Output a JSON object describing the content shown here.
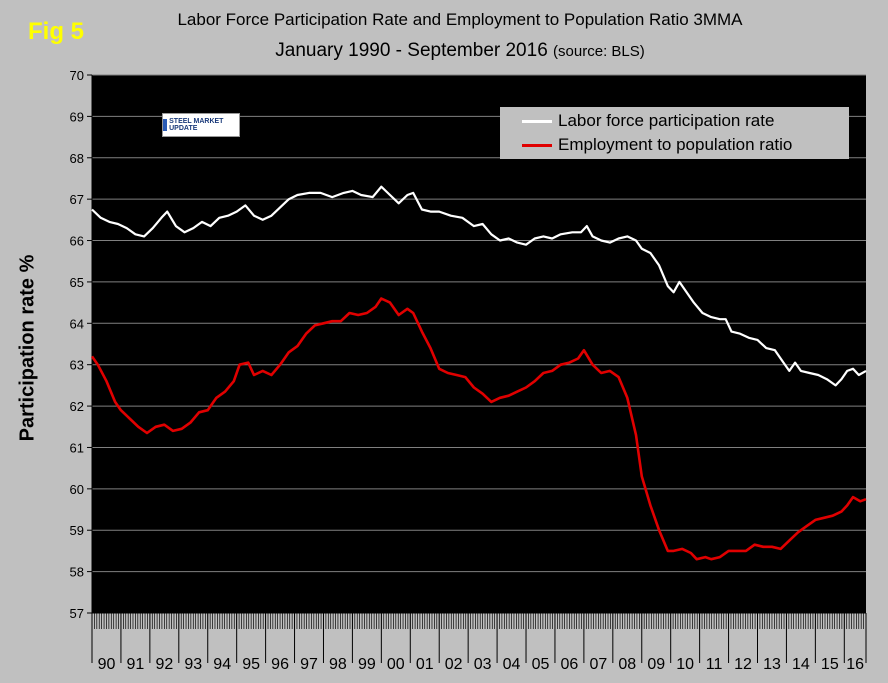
{
  "figure_label": "Fig 5",
  "logo_text": "STEEL MARKET UPDATE",
  "colors": {
    "background": "#c0c0c0",
    "plot_bg": "#000000",
    "grid": "#808080",
    "series1": "#ffffff",
    "series2": "#e00000",
    "fig_label": "#ffff00"
  },
  "chart_data": {
    "type": "line",
    "title": "Labor Force Participation Rate and Employment to Population Ratio 3MMA",
    "subtitle": "January 1990 - September 2016",
    "source_note": "(source: BLS)",
    "xlabel": "",
    "ylabel": "Participation rate %",
    "ylim": [
      57,
      70
    ],
    "yticks": [
      57,
      58,
      59,
      60,
      61,
      62,
      63,
      64,
      65,
      66,
      67,
      68,
      69,
      70
    ],
    "xlim": [
      1990.0,
      2016.75
    ],
    "x_tick_labels": [
      "90",
      "91",
      "92",
      "93",
      "94",
      "95",
      "96",
      "97",
      "98",
      "99",
      "00",
      "01",
      "02",
      "03",
      "04",
      "05",
      "06",
      "07",
      "08",
      "09",
      "10",
      "11",
      "12",
      "13",
      "14",
      "15",
      "16"
    ],
    "grid": true,
    "legend_position": "top-right",
    "series": [
      {
        "name": "Labor force participation rate",
        "color": "#ffffff",
        "points": [
          [
            1990.0,
            66.75
          ],
          [
            1990.3,
            66.55
          ],
          [
            1990.6,
            66.45
          ],
          [
            1990.9,
            66.4
          ],
          [
            1991.2,
            66.3
          ],
          [
            1991.5,
            66.15
          ],
          [
            1991.8,
            66.1
          ],
          [
            1992.1,
            66.3
          ],
          [
            1992.4,
            66.55
          ],
          [
            1992.6,
            66.7
          ],
          [
            1992.9,
            66.35
          ],
          [
            1993.2,
            66.2
          ],
          [
            1993.5,
            66.3
          ],
          [
            1993.8,
            66.45
          ],
          [
            1994.1,
            66.35
          ],
          [
            1994.4,
            66.55
          ],
          [
            1994.7,
            66.6
          ],
          [
            1995.0,
            66.7
          ],
          [
            1995.3,
            66.85
          ],
          [
            1995.6,
            66.6
          ],
          [
            1995.9,
            66.5
          ],
          [
            1996.2,
            66.6
          ],
          [
            1996.5,
            66.8
          ],
          [
            1996.8,
            67.0
          ],
          [
            1997.1,
            67.1
          ],
          [
            1997.5,
            67.15
          ],
          [
            1997.9,
            67.15
          ],
          [
            1998.3,
            67.05
          ],
          [
            1998.7,
            67.15
          ],
          [
            1999.0,
            67.2
          ],
          [
            1999.3,
            67.1
          ],
          [
            1999.7,
            67.05
          ],
          [
            2000.0,
            67.3
          ],
          [
            2000.3,
            67.1
          ],
          [
            2000.6,
            66.9
          ],
          [
            2000.9,
            67.1
          ],
          [
            2001.1,
            67.15
          ],
          [
            2001.4,
            66.75
          ],
          [
            2001.7,
            66.7
          ],
          [
            2002.0,
            66.7
          ],
          [
            2002.4,
            66.6
          ],
          [
            2002.8,
            66.55
          ],
          [
            2003.2,
            66.35
          ],
          [
            2003.5,
            66.4
          ],
          [
            2003.8,
            66.15
          ],
          [
            2004.1,
            66.0
          ],
          [
            2004.4,
            66.05
          ],
          [
            2004.7,
            65.95
          ],
          [
            2005.0,
            65.9
          ],
          [
            2005.3,
            66.05
          ],
          [
            2005.6,
            66.1
          ],
          [
            2005.9,
            66.05
          ],
          [
            2006.2,
            66.15
          ],
          [
            2006.6,
            66.2
          ],
          [
            2006.9,
            66.2
          ],
          [
            2007.1,
            66.35
          ],
          [
            2007.3,
            66.1
          ],
          [
            2007.6,
            66.0
          ],
          [
            2007.9,
            65.95
          ],
          [
            2008.2,
            66.05
          ],
          [
            2008.5,
            66.1
          ],
          [
            2008.8,
            66.0
          ],
          [
            2009.0,
            65.8
          ],
          [
            2009.3,
            65.7
          ],
          [
            2009.6,
            65.4
          ],
          [
            2009.9,
            64.9
          ],
          [
            2010.1,
            64.75
          ],
          [
            2010.3,
            65.0
          ],
          [
            2010.5,
            64.8
          ],
          [
            2010.8,
            64.5
          ],
          [
            2011.1,
            64.25
          ],
          [
            2011.4,
            64.15
          ],
          [
            2011.7,
            64.1
          ],
          [
            2011.9,
            64.1
          ],
          [
            2012.1,
            63.8
          ],
          [
            2012.4,
            63.75
          ],
          [
            2012.7,
            63.65
          ],
          [
            2013.0,
            63.6
          ],
          [
            2013.3,
            63.4
          ],
          [
            2013.6,
            63.35
          ],
          [
            2013.9,
            63.05
          ],
          [
            2014.1,
            62.85
          ],
          [
            2014.3,
            63.05
          ],
          [
            2014.5,
            62.85
          ],
          [
            2014.8,
            62.8
          ],
          [
            2015.1,
            62.75
          ],
          [
            2015.4,
            62.65
          ],
          [
            2015.7,
            62.5
          ],
          [
            2015.9,
            62.65
          ],
          [
            2016.1,
            62.85
          ],
          [
            2016.3,
            62.9
          ],
          [
            2016.5,
            62.75
          ],
          [
            2016.75,
            62.85
          ]
        ]
      },
      {
        "name": "Employment to population ratio",
        "color": "#e00000",
        "points": [
          [
            1990.0,
            63.2
          ],
          [
            1990.2,
            63.0
          ],
          [
            1990.5,
            62.6
          ],
          [
            1990.8,
            62.1
          ],
          [
            1991.0,
            61.9
          ],
          [
            1991.3,
            61.7
          ],
          [
            1991.6,
            61.5
          ],
          [
            1991.9,
            61.35
          ],
          [
            1992.2,
            61.5
          ],
          [
            1992.5,
            61.55
          ],
          [
            1992.8,
            61.4
          ],
          [
            1993.1,
            61.45
          ],
          [
            1993.4,
            61.6
          ],
          [
            1993.7,
            61.85
          ],
          [
            1994.0,
            61.9
          ],
          [
            1994.3,
            62.2
          ],
          [
            1994.6,
            62.35
          ],
          [
            1994.9,
            62.6
          ],
          [
            1995.1,
            63.0
          ],
          [
            1995.4,
            63.05
          ],
          [
            1995.6,
            62.75
          ],
          [
            1995.9,
            62.85
          ],
          [
            1996.2,
            62.75
          ],
          [
            1996.5,
            63.0
          ],
          [
            1996.8,
            63.3
          ],
          [
            1997.1,
            63.45
          ],
          [
            1997.4,
            63.75
          ],
          [
            1997.7,
            63.95
          ],
          [
            1998.0,
            64.0
          ],
          [
            1998.3,
            64.05
          ],
          [
            1998.6,
            64.05
          ],
          [
            1998.9,
            64.25
          ],
          [
            1999.2,
            64.2
          ],
          [
            1999.5,
            64.25
          ],
          [
            1999.8,
            64.4
          ],
          [
            2000.0,
            64.6
          ],
          [
            2000.3,
            64.5
          ],
          [
            2000.6,
            64.2
          ],
          [
            2000.9,
            64.35
          ],
          [
            2001.1,
            64.25
          ],
          [
            2001.4,
            63.8
          ],
          [
            2001.7,
            63.4
          ],
          [
            2002.0,
            62.9
          ],
          [
            2002.3,
            62.8
          ],
          [
            2002.6,
            62.75
          ],
          [
            2002.9,
            62.7
          ],
          [
            2003.2,
            62.45
          ],
          [
            2003.5,
            62.3
          ],
          [
            2003.8,
            62.1
          ],
          [
            2004.1,
            62.2
          ],
          [
            2004.4,
            62.25
          ],
          [
            2004.7,
            62.35
          ],
          [
            2005.0,
            62.45
          ],
          [
            2005.3,
            62.6
          ],
          [
            2005.6,
            62.8
          ],
          [
            2005.9,
            62.85
          ],
          [
            2006.2,
            63.0
          ],
          [
            2006.5,
            63.05
          ],
          [
            2006.8,
            63.15
          ],
          [
            2007.0,
            63.35
          ],
          [
            2007.3,
            63.0
          ],
          [
            2007.6,
            62.8
          ],
          [
            2007.9,
            62.85
          ],
          [
            2008.2,
            62.7
          ],
          [
            2008.5,
            62.2
          ],
          [
            2008.8,
            61.3
          ],
          [
            2009.0,
            60.3
          ],
          [
            2009.3,
            59.6
          ],
          [
            2009.6,
            59.0
          ],
          [
            2009.9,
            58.5
          ],
          [
            2010.1,
            58.5
          ],
          [
            2010.4,
            58.55
          ],
          [
            2010.7,
            58.45
          ],
          [
            2010.9,
            58.3
          ],
          [
            2011.2,
            58.35
          ],
          [
            2011.4,
            58.3
          ],
          [
            2011.7,
            58.35
          ],
          [
            2012.0,
            58.5
          ],
          [
            2012.3,
            58.5
          ],
          [
            2012.6,
            58.5
          ],
          [
            2012.9,
            58.65
          ],
          [
            2013.2,
            58.6
          ],
          [
            2013.5,
            58.6
          ],
          [
            2013.8,
            58.55
          ],
          [
            2014.1,
            58.75
          ],
          [
            2014.4,
            58.95
          ],
          [
            2014.7,
            59.1
          ],
          [
            2015.0,
            59.25
          ],
          [
            2015.3,
            59.3
          ],
          [
            2015.6,
            59.35
          ],
          [
            2015.9,
            59.45
          ],
          [
            2016.1,
            59.6
          ],
          [
            2016.3,
            59.8
          ],
          [
            2016.55,
            59.7
          ],
          [
            2016.75,
            59.75
          ]
        ]
      }
    ]
  }
}
